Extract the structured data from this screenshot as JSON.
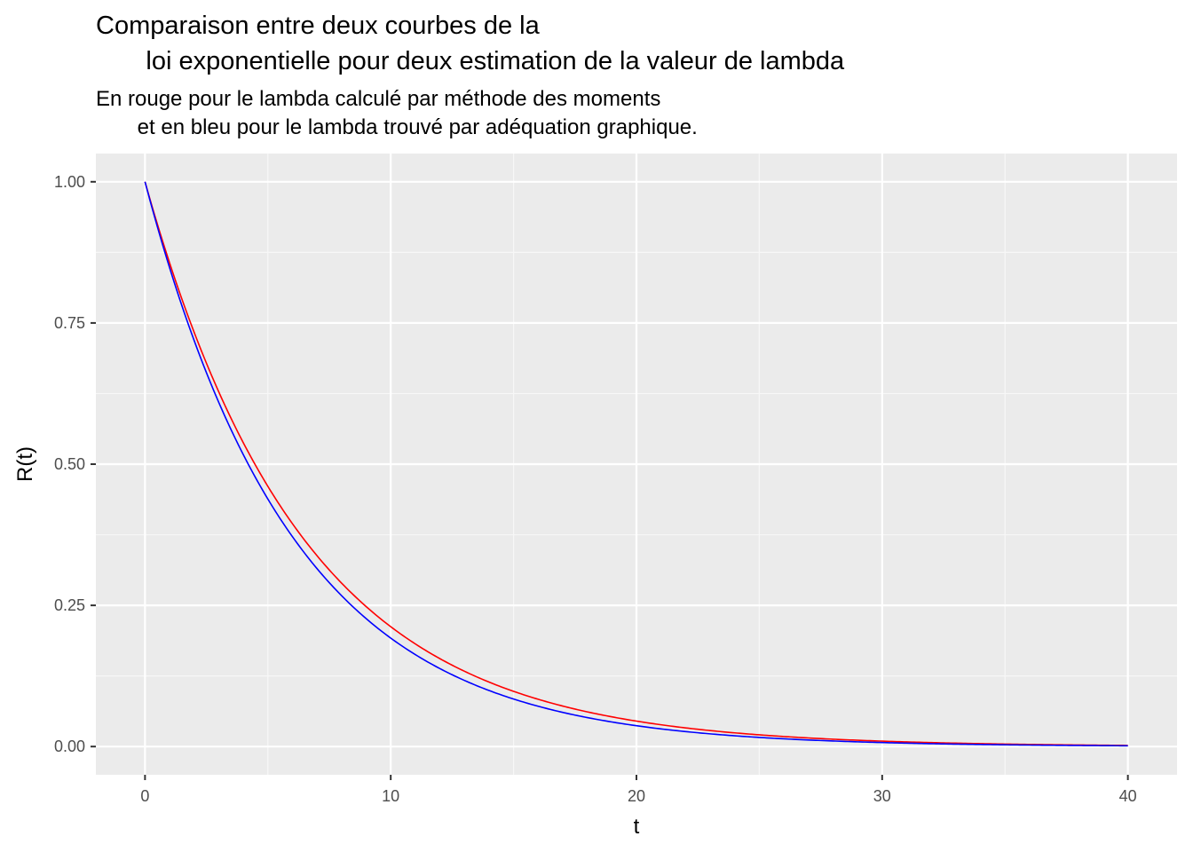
{
  "chart_data": {
    "type": "line",
    "title_line1": "Comparaison entre deux courbes de la",
    "title_line2": "       loi exponentielle pour deux estimation de la valeur de lambda",
    "subtitle_line1": "En rouge pour le lambda calculé par méthode des moments",
    "subtitle_line2": "       et en bleu pour le lambda trouvé par adéquation graphique.",
    "xlabel": "t",
    "ylabel": "R(t)",
    "xlim": [
      -2,
      42
    ],
    "ylim": [
      -0.05,
      1.05
    ],
    "x_ticks": [
      0,
      10,
      20,
      30,
      40
    ],
    "x_tick_labels": [
      "0",
      "10",
      "20",
      "30",
      "40"
    ],
    "y_ticks": [
      0,
      0.25,
      0.5,
      0.75,
      1.0
    ],
    "y_tick_labels": [
      "0.00",
      "0.25",
      "0.50",
      "0.75",
      "1.00"
    ],
    "grid": true,
    "legend": "none",
    "x_domain": [
      0,
      40
    ],
    "series": [
      {
        "color": "#ff0000",
        "lambda": 0.155
      },
      {
        "color": "#0000ff",
        "lambda": 0.165
      }
    ]
  }
}
